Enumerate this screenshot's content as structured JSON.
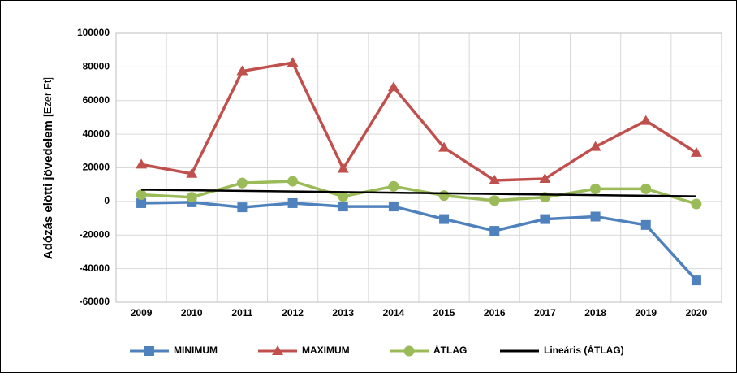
{
  "chart_data": {
    "type": "line",
    "y_label": "Adózás elötti jövedelem",
    "y_unit": "[Ezer Ft]",
    "categories": [
      "2009",
      "2010",
      "2011",
      "2012",
      "2013",
      "2014",
      "2015",
      "2016",
      "2017",
      "2018",
      "2019",
      "2020"
    ],
    "series": [
      {
        "name": "MINIMUM",
        "color": "#4f81bd",
        "marker": "square",
        "values": [
          -1000,
          -500,
          -3500,
          -1000,
          -3000,
          -3000,
          -10500,
          -17500,
          -10500,
          -9000,
          -14000,
          -47000
        ]
      },
      {
        "name": "MAXIMUM",
        "color": "#c0504d",
        "marker": "triangle",
        "values": [
          22000,
          16500,
          77500,
          82500,
          19500,
          68000,
          32000,
          12500,
          13500,
          32500,
          48000,
          29000
        ]
      },
      {
        "name": "ÁTLAG",
        "color": "#9bbb59",
        "marker": "circle",
        "values": [
          4000,
          2500,
          11000,
          12000,
          3000,
          9000,
          3500,
          500,
          2500,
          7500,
          7500,
          -1500
        ]
      },
      {
        "name": "Lineáris (ÁTLAG)",
        "color": "#000000",
        "marker": "none",
        "values": [
          7000,
          6640,
          6270,
          5910,
          5550,
          5180,
          4820,
          4450,
          4090,
          3730,
          3360,
          3000
        ]
      }
    ],
    "ylim": [
      -60000,
      100000
    ],
    "yticks": [
      -60000,
      -40000,
      -20000,
      0,
      20000,
      40000,
      60000,
      80000,
      100000
    ],
    "grid": true,
    "legend": "bottom"
  }
}
